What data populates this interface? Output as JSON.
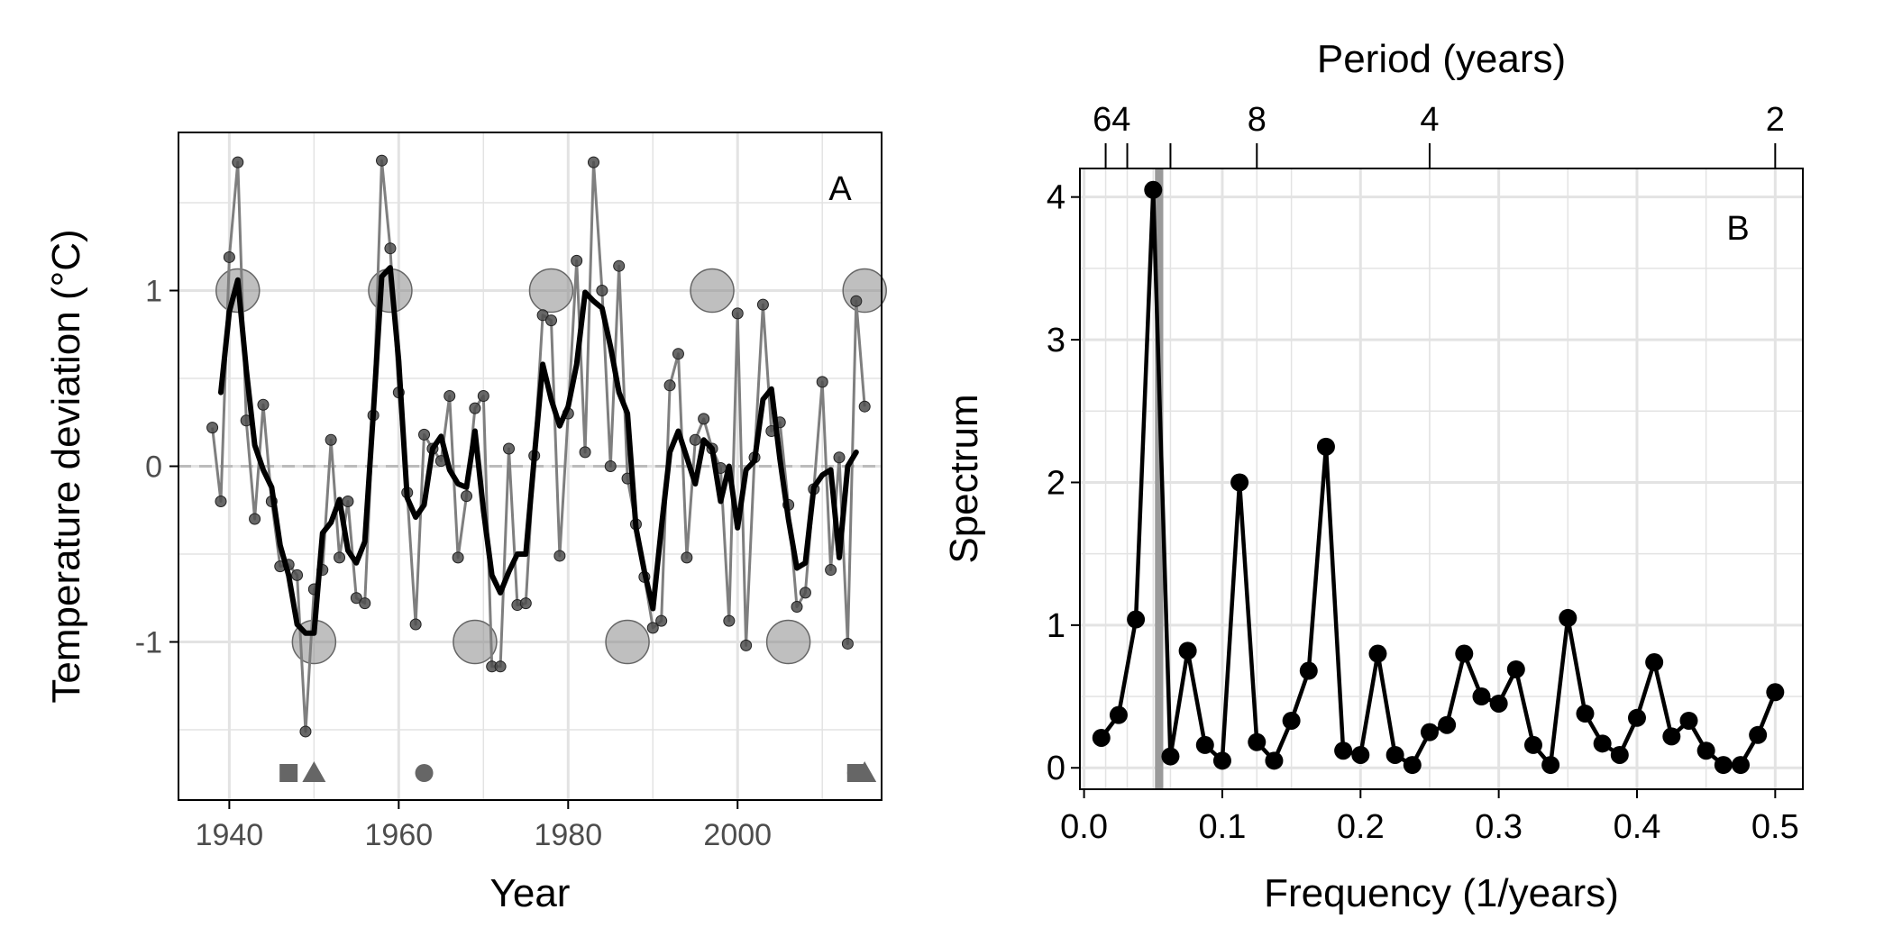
{
  "chart_data": [
    {
      "type": "line",
      "panel_label": "A",
      "xlabel": "Year",
      "ylabel": "Temperature deviation (°C)",
      "xlim": [
        1934,
        2017
      ],
      "ylim": [
        -1.9,
        1.9
      ],
      "x_ticks": [
        1940,
        1960,
        1980,
        2000
      ],
      "y_ticks": [
        -1,
        0,
        1
      ],
      "y_tick_labels": [
        "-1",
        "0",
        "1"
      ],
      "grid": true,
      "reference_line": {
        "y": 0,
        "style": "dashed",
        "color": "#bbbbbb"
      },
      "colors": {
        "raw": "#7f7f7f",
        "smooth": "#000000",
        "markers": "#666666"
      },
      "series": [
        {
          "style": "annual",
          "x": [
            1938,
            1939,
            1940,
            1941,
            1942,
            1943,
            1944,
            1945,
            1946,
            1947,
            1948,
            1949,
            1950,
            1951,
            1952,
            1953,
            1954,
            1955,
            1956,
            1957,
            1958,
            1959,
            1960,
            1961,
            1962,
            1963,
            1964,
            1965,
            1966,
            1967,
            1968,
            1969,
            1970,
            1971,
            1972,
            1973,
            1974,
            1975,
            1976,
            1977,
            1978,
            1979,
            1980,
            1981,
            1982,
            1983,
            1984,
            1985,
            1986,
            1987,
            1988,
            1989,
            1990,
            1991,
            1992,
            1993,
            1994,
            1995,
            1996,
            1997,
            1998,
            1999,
            2000,
            2001,
            2002,
            2003,
            2004,
            2005,
            2006,
            2007,
            2008,
            2009,
            2010,
            2011,
            2012,
            2013,
            2014,
            2015
          ],
          "y": [
            0.22,
            -0.2,
            1.19,
            1.73,
            0.26,
            -0.3,
            0.35,
            -0.2,
            -0.57,
            -0.56,
            -0.62,
            -1.51,
            -0.7,
            -0.59,
            0.15,
            -0.52,
            -0.2,
            -0.75,
            -0.78,
            0.29,
            1.74,
            1.24,
            0.42,
            -0.15,
            -0.9,
            0.18,
            0.1,
            0.03,
            0.4,
            -0.52,
            -0.17,
            0.33,
            0.4,
            -1.14,
            -1.14,
            0.1,
            -0.79,
            -0.78,
            0.06,
            0.86,
            0.83,
            -0.51,
            0.3,
            1.17,
            0.08,
            1.73,
            1.0,
            0.0,
            1.14,
            -0.07,
            -0.33,
            -0.63,
            -0.92,
            -0.88,
            0.46,
            0.64,
            -0.52,
            0.15,
            0.27,
            0.1,
            -0.01,
            -0.88,
            0.87,
            -1.02,
            0.05,
            0.92,
            0.2,
            0.25,
            -0.22,
            -0.8,
            -0.72,
            -0.13,
            0.48,
            -0.59,
            0.05,
            -1.01,
            0.94,
            0.34
          ]
        },
        {
          "style": "smoothed",
          "x": [
            1939,
            1940,
            1941,
            1942,
            1943,
            1944,
            1945,
            1946,
            1947,
            1948,
            1949,
            1950,
            1951,
            1952,
            1953,
            1954,
            1955,
            1956,
            1957,
            1958,
            1959,
            1960,
            1961,
            1962,
            1963,
            1964,
            1965,
            1966,
            1967,
            1968,
            1969,
            1970,
            1971,
            1972,
            1973,
            1974,
            1975,
            1976,
            1977,
            1978,
            1979,
            1980,
            1981,
            1982,
            1983,
            1984,
            1985,
            1986,
            1987,
            1988,
            1989,
            1990,
            1991,
            1992,
            1993,
            1994,
            1995,
            1996,
            1997,
            1998,
            1999,
            2000,
            2001,
            2002,
            2003,
            2004,
            2005,
            2006,
            2007,
            2008,
            2009,
            2010,
            2011,
            2012,
            2013,
            2014
          ],
          "y": [
            0.42,
            0.88,
            1.06,
            0.55,
            0.12,
            -0.02,
            -0.12,
            -0.45,
            -0.62,
            -0.9,
            -0.95,
            -0.95,
            -0.38,
            -0.32,
            -0.19,
            -0.48,
            -0.55,
            -0.43,
            0.3,
            1.08,
            1.13,
            0.6,
            -0.18,
            -0.29,
            -0.22,
            0.1,
            0.17,
            -0.02,
            -0.1,
            -0.12,
            0.2,
            -0.25,
            -0.62,
            -0.72,
            -0.6,
            -0.5,
            -0.5,
            0.05,
            0.58,
            0.38,
            0.23,
            0.34,
            0.58,
            0.99,
            0.94,
            0.9,
            0.68,
            0.42,
            0.3,
            -0.35,
            -0.6,
            -0.81,
            -0.35,
            0.08,
            0.2,
            0.05,
            -0.1,
            0.15,
            0.1,
            -0.2,
            0.0,
            -0.35,
            -0.02,
            0.03,
            0.38,
            0.44,
            0.04,
            -0.3,
            -0.58,
            -0.55,
            -0.12,
            -0.05,
            -0.02,
            -0.52,
            0.0,
            0.08
          ]
        },
        {
          "style": "extreme-years",
          "x": [
            1941,
            1959,
            1978,
            1997,
            2015,
            1950,
            1969,
            1987,
            2006
          ],
          "y": [
            1,
            1,
            1,
            1,
            1,
            -1,
            -1,
            -1,
            -1
          ]
        }
      ],
      "event_markers": [
        {
          "shape": "square",
          "x": 1947
        },
        {
          "shape": "triangle",
          "x": 1950
        },
        {
          "shape": "circle",
          "x": 1963
        },
        {
          "shape": "square",
          "x": 2014
        },
        {
          "shape": "circle",
          "x": 2014
        },
        {
          "shape": "triangle",
          "x": 2015
        }
      ]
    },
    {
      "type": "line",
      "panel_label": "B",
      "xlabel": "Frequency (1/years)",
      "ylabel": "Spectrum",
      "top_axis_label": "Period (years)",
      "xlim": [
        -0.003,
        0.52
      ],
      "ylim": [
        -0.15,
        4.2
      ],
      "x_ticks": [
        0.0,
        0.1,
        0.2,
        0.3,
        0.4,
        0.5
      ],
      "x_tick_labels": [
        "0.0",
        "0.1",
        "0.2",
        "0.3",
        "0.4",
        "0.5"
      ],
      "y_ticks": [
        0,
        1,
        2,
        3,
        4
      ],
      "top_ticks": [
        0.015625,
        0.03125,
        0.0625,
        0.125,
        0.25,
        0.5
      ],
      "top_tick_labels": [
        "64",
        "8",
        "4",
        "2"
      ],
      "top_tick_label_positions": [
        0.02,
        0.125,
        0.25,
        0.5
      ],
      "highlight_band": {
        "x": 0.0543,
        "width": 0.006,
        "color": "#9a9a9a"
      },
      "grid": true,
      "series": [
        {
          "style": "spectrum",
          "x": [
            0.0125,
            0.025,
            0.0375,
            0.05,
            0.0625,
            0.075,
            0.0875,
            0.1,
            0.1125,
            0.125,
            0.1375,
            0.15,
            0.1625,
            0.175,
            0.1875,
            0.2,
            0.2125,
            0.225,
            0.2375,
            0.25,
            0.2625,
            0.275,
            0.2875,
            0.3,
            0.3125,
            0.325,
            0.3375,
            0.35,
            0.3625,
            0.375,
            0.3875,
            0.4,
            0.4125,
            0.425,
            0.4375,
            0.45,
            0.4625,
            0.475,
            0.4875,
            0.5
          ],
          "y": [
            0.21,
            0.37,
            1.04,
            4.05,
            0.08,
            0.82,
            0.16,
            0.05,
            2.0,
            0.18,
            0.05,
            0.33,
            0.68,
            2.25,
            0.12,
            0.09,
            0.8,
            0.09,
            0.02,
            0.25,
            0.3,
            0.8,
            0.5,
            0.45,
            0.69,
            0.16,
            0.02,
            1.05,
            0.38,
            0.17,
            0.09,
            0.35,
            0.74,
            0.22,
            0.33,
            0.12,
            0.02,
            0.02,
            0.23,
            0.53
          ]
        }
      ]
    }
  ]
}
